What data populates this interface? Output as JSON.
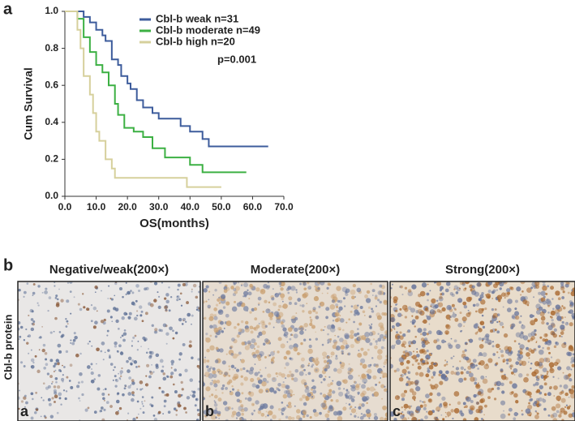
{
  "chart_data": {
    "type": "line",
    "x_label": "OS(months)",
    "y_label": "Cum Survival",
    "annotation": "p=0.001",
    "panel_label": "a",
    "xlim": [
      0,
      70
    ],
    "ylim": [
      0,
      1
    ],
    "xticks": [
      {
        "value": 0,
        "label": "0.0"
      },
      {
        "value": 10,
        "label": "10.0"
      },
      {
        "value": 20,
        "label": "20.0"
      },
      {
        "value": 30,
        "label": "30.0"
      },
      {
        "value": 40,
        "label": "40.0"
      },
      {
        "value": 50,
        "label": "50.0"
      },
      {
        "value": 60,
        "label": "60.0"
      },
      {
        "value": 70,
        "label": "70.0"
      }
    ],
    "yticks": [
      {
        "value": 0,
        "label": "0.0"
      },
      {
        "value": 0.2,
        "label": "0.2"
      },
      {
        "value": 0.4,
        "label": "0.4"
      },
      {
        "value": 0.6,
        "label": "0.6"
      },
      {
        "value": 0.8,
        "label": "0.8"
      },
      {
        "value": 1,
        "label": "1.0"
      }
    ],
    "series": [
      {
        "name": "Cbl-b weak n=31",
        "color": "#3d5c9c",
        "x": [
          0,
          6,
          6,
          8,
          8,
          10,
          10,
          12,
          12,
          13,
          13,
          15,
          15,
          17,
          17,
          18,
          18,
          20,
          20,
          21,
          21,
          23,
          23,
          25,
          25,
          28,
          28,
          30,
          30,
          37,
          37,
          40,
          40,
          44,
          44,
          46,
          46,
          65
        ],
        "values": [
          1,
          1,
          0.97,
          0.97,
          0.94,
          0.94,
          0.9,
          0.9,
          0.87,
          0.87,
          0.84,
          0.84,
          0.74,
          0.74,
          0.71,
          0.71,
          0.65,
          0.65,
          0.61,
          0.61,
          0.58,
          0.58,
          0.52,
          0.52,
          0.48,
          0.48,
          0.45,
          0.45,
          0.42,
          0.42,
          0.38,
          0.38,
          0.35,
          0.35,
          0.31,
          0.31,
          0.27,
          0.27
        ]
      },
      {
        "name": "Cbl-b moderate n=49",
        "color": "#3cb043",
        "x": [
          0,
          4,
          4,
          6,
          6,
          8,
          8,
          10,
          10,
          12,
          12,
          14,
          14,
          16,
          16,
          17,
          17,
          19,
          19,
          22,
          22,
          25,
          25,
          28,
          28,
          32,
          32,
          40,
          40,
          44,
          44,
          58
        ],
        "values": [
          1,
          1,
          0.96,
          0.96,
          0.86,
          0.86,
          0.78,
          0.78,
          0.71,
          0.71,
          0.67,
          0.67,
          0.6,
          0.6,
          0.5,
          0.5,
          0.44,
          0.44,
          0.37,
          0.37,
          0.35,
          0.35,
          0.32,
          0.32,
          0.26,
          0.26,
          0.21,
          0.21,
          0.17,
          0.17,
          0.13,
          0.13
        ]
      },
      {
        "name": "Cbl-b high n=20",
        "color": "#d6d09c",
        "x": [
          0,
          4,
          4,
          5,
          5,
          6,
          6,
          8,
          8,
          9,
          9,
          10,
          10,
          11,
          11,
          13,
          13,
          15,
          15,
          16,
          16,
          39,
          39,
          50
        ],
        "values": [
          1,
          1,
          0.9,
          0.9,
          0.8,
          0.8,
          0.65,
          0.65,
          0.55,
          0.55,
          0.45,
          0.45,
          0.35,
          0.35,
          0.3,
          0.3,
          0.2,
          0.2,
          0.15,
          0.15,
          0.1,
          0.1,
          0.05,
          0.05
        ]
      }
    ]
  },
  "figure": {
    "panel_label": "b",
    "row_label": "Cbl-b protein",
    "images": [
      {
        "title": "Negative/weak(200×)",
        "letter": "a"
      },
      {
        "title": "Moderate(200×)",
        "letter": "b"
      },
      {
        "title": "Strong(200×)",
        "letter": "c"
      }
    ]
  }
}
